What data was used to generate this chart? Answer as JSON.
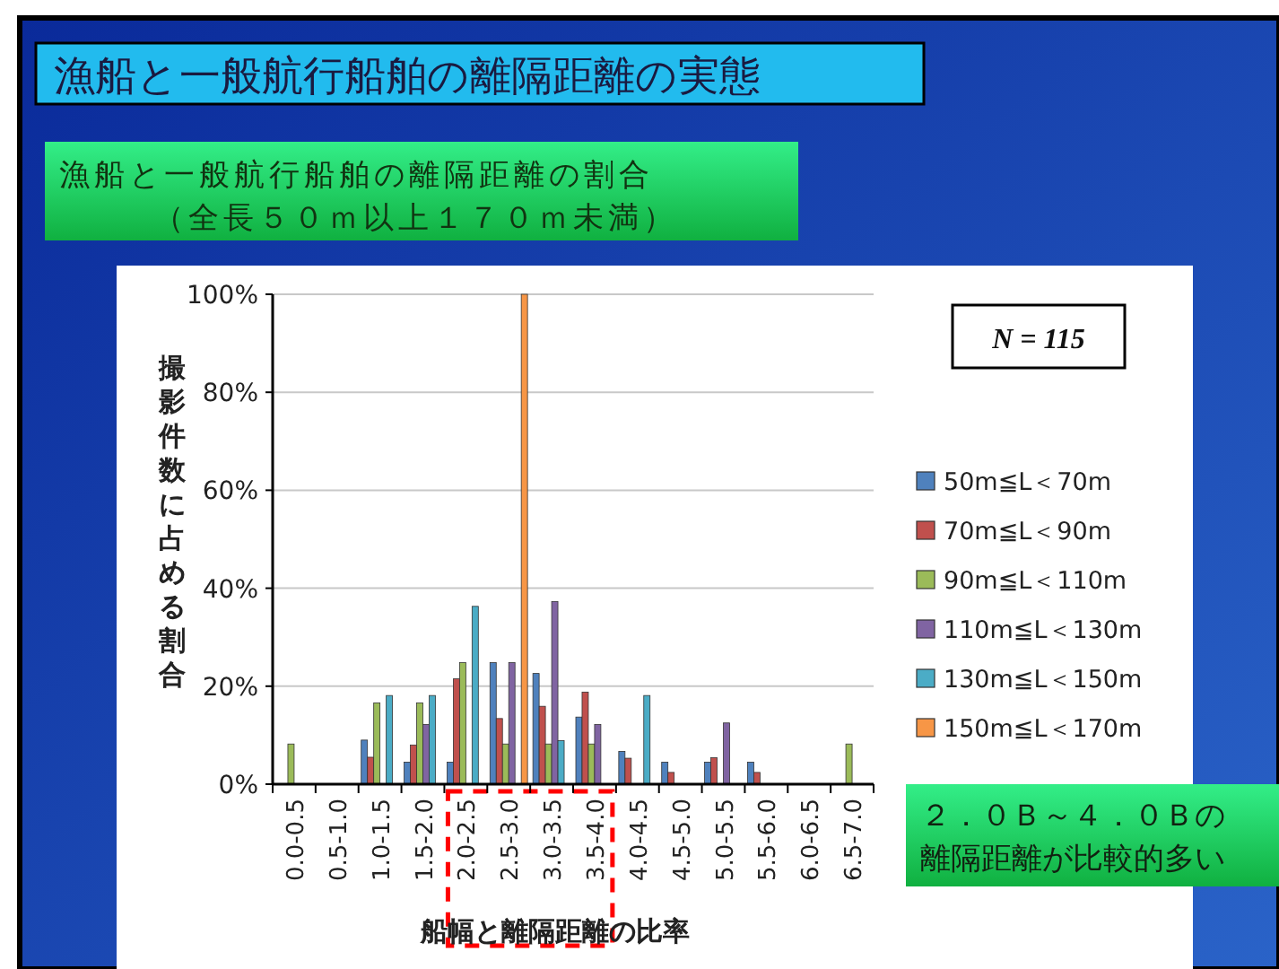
{
  "chart_data": {
    "type": "bar",
    "title": "漁船と一般航行船舶の離隔距離の実態",
    "subtitle": "漁船と一般航行船舶の離隔距離の割合（全長５０ｍ以上１７０ｍ未満）",
    "xlabel": "船幅と離隔距離の比率",
    "ylabel": "撮影件数に占める割合",
    "categories": [
      "0.0-0.5",
      "0.5-1.0",
      "1.0-1.5",
      "1.5-2.0",
      "2.0-2.5",
      "2.5-3.0",
      "3.0-3.5",
      "3.5-4.0",
      "4.0-4.5",
      "4.5-5.0",
      "5.0-5.5",
      "5.5-6.0",
      "6.0-6.5",
      "6.5-7.0"
    ],
    "series": [
      {
        "name": "50m≦L＜70m",
        "color": "#4f81bd",
        "values": [
          0,
          0,
          9,
          4.5,
          4.5,
          24.8,
          22.6,
          13.7,
          6.7,
          4.5,
          4.5,
          4.5,
          0,
          0
        ]
      },
      {
        "name": "70m≦L＜90m",
        "color": "#c0504d",
        "values": [
          0,
          0,
          5.5,
          8,
          21.5,
          13.4,
          15.9,
          18.8,
          5.3,
          2.4,
          5.4,
          2.4,
          0,
          0
        ]
      },
      {
        "name": "90m≦L＜110m",
        "color": "#9bbb59",
        "values": [
          8.2,
          0,
          16.6,
          16.6,
          24.8,
          8.2,
          8.2,
          8.2,
          0,
          0,
          0,
          0,
          0,
          8.2
        ]
      },
      {
        "name": "110m≦L＜130m",
        "color": "#8064a2",
        "values": [
          0,
          0,
          0,
          12.2,
          0,
          24.8,
          37.3,
          12.2,
          0,
          0,
          12.5,
          0,
          0,
          0
        ]
      },
      {
        "name": "130m≦L＜150m",
        "color": "#4bacc6",
        "values": [
          0,
          0,
          18.1,
          18.1,
          36.3,
          0,
          8.9,
          0,
          18.1,
          0,
          0,
          0,
          0,
          0
        ]
      },
      {
        "name": "150m≦L＜170m",
        "color": "#f79646",
        "values": [
          0,
          0,
          0,
          0,
          0,
          100,
          0,
          0,
          0,
          0,
          0,
          0,
          0,
          0
        ]
      }
    ],
    "ylim": [
      0,
      100
    ],
    "yticks": [
      {
        "value": 0,
        "label": "0%"
      },
      {
        "value": 20,
        "label": "20%"
      },
      {
        "value": 40,
        "label": "40%"
      },
      {
        "value": 60,
        "label": "60%"
      },
      {
        "value": 80,
        "label": "80%"
      },
      {
        "value": 100,
        "label": "100%"
      }
    ],
    "grid": "y",
    "legend": "right",
    "annotations": [
      "N = 115",
      "２．０Ｂ～４．０Ｂの離隔距離が比較的多い"
    ]
  }
}
